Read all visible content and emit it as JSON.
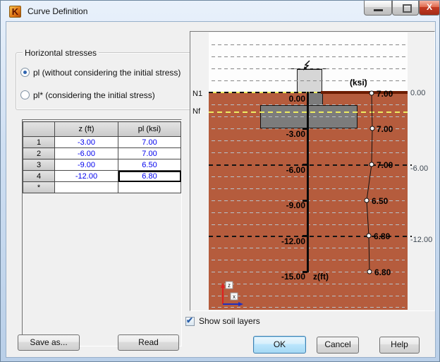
{
  "window": {
    "title": "Curve Definition",
    "app_icon_letter": "K",
    "close_glyph": "X"
  },
  "left_panel": {
    "group_title": "Horizontal stresses",
    "radio_pl_label": "pl (without considering the initial stress)",
    "radio_pl_selected": true,
    "radio_pl_star_label": "pl* (considering the initial stress)",
    "radio_pl_star_selected": false,
    "table": {
      "headers": [
        "",
        "z (ft)",
        "pl (ksi)"
      ],
      "rows": [
        {
          "num": "1",
          "z": "-3.00",
          "pl": "7.00"
        },
        {
          "num": "2",
          "z": "-6.00",
          "pl": "7.00"
        },
        {
          "num": "3",
          "z": "-9.00",
          "pl": "6.50"
        },
        {
          "num": "4",
          "z": "-12.00",
          "pl": "6.80"
        }
      ],
      "new_row_marker": "*",
      "selected_cell": {
        "row": 4,
        "column": "pl (ksi)",
        "value": "6.80"
      }
    },
    "save_as_button": "Save as...",
    "read_button": "Read"
  },
  "chart_data": {
    "type": "line",
    "unit_label": "(ksi)",
    "x_axis_label": "z(ft)",
    "soil_top_label": "N1",
    "layer_line_label": "Nf",
    "depth_tick_labels": [
      "0.00",
      "-3.00",
      "-6.00",
      "-9.00",
      "-12.00",
      "-15.00"
    ],
    "right_axis_labels": [
      "0.00",
      "-6.00",
      "-12.00"
    ],
    "series": [
      {
        "name": "pl (ksi)",
        "z_ft": [
          0,
          -3,
          -6,
          -9,
          -12,
          -15
        ],
        "values": [
          7.0,
          7.0,
          7.0,
          6.5,
          6.8,
          6.8
        ]
      }
    ],
    "point_labels": [
      "7.00",
      "7.00",
      "7.00",
      "6.50",
      "6.80",
      "6.80"
    ],
    "orientation_axes": {
      "vertical": "z",
      "horizontal": "x"
    },
    "layout": {
      "grid": "dashed horizontal lines every 1 ft, dark lines every 6 ft",
      "soil_from_z": 0,
      "soil_color": "#b55c3d"
    },
    "colors": {
      "soil": "#b55c3d",
      "surface_line": "#6b1c02",
      "layer_line_yellow": "#eded62",
      "structure_gray": "#7c7c7c",
      "column_gray": "#d6d6d6"
    }
  },
  "footer": {
    "show_soil_layers_label": "Show soil layers",
    "show_soil_layers_checked": true,
    "check_glyph": "✔",
    "ok_button": "OK",
    "cancel_button": "Cancel",
    "help_button": "Help"
  }
}
